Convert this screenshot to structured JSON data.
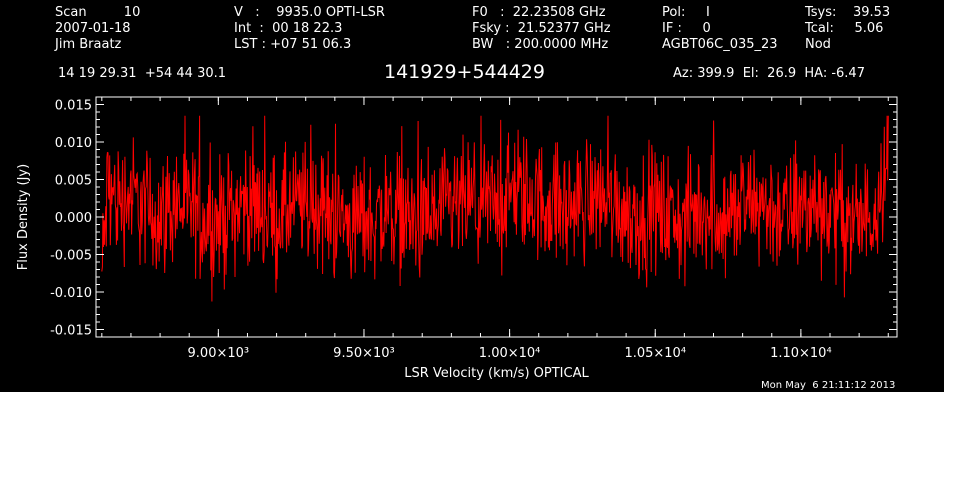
{
  "header": {
    "col1": [
      "Scan         10",
      "2007-01-18",
      "Jim Braatz"
    ],
    "col2": [
      "V   :    9935.0 OPTI-LSR",
      "Int  :  00 18 22.3",
      "LST : +07 51 06.3"
    ],
    "col3": [
      "F0   :  22.23508 GHz",
      "Fsky :  21.52377 GHz",
      "BW   : 200.0000 MHz"
    ],
    "col4": [
      "Pol:     I",
      "IF :     0",
      "AGBT06C_035_23"
    ],
    "col5": [
      "Tsys:    39.53",
      "Tcal:     5.06",
      "Nod"
    ],
    "coords": "14 19 29.31  +54 44 30.1",
    "source": "141929+544429",
    "azel": "Az: 399.9  El:  26.9  HA: -6.47",
    "timestamp": "Mon May  6 21:11:12 2013"
  },
  "colors": {
    "background": "#000000",
    "trace": "#ff0000",
    "axes": "#ffffff"
  },
  "chart_data": {
    "type": "line",
    "title": "",
    "xlabel": "LSR Velocity (km/s) OPTICAL",
    "ylabel": "Flux Density (Jy)",
    "xlim": [
      8580,
      11330
    ],
    "ylim": [
      -0.016,
      0.016
    ],
    "x_ticks": [
      9000,
      9500,
      10000,
      10500,
      11000
    ],
    "x_tick_labels": [
      "9.00×10³",
      "9.50×10³",
      "1.00×10⁴",
      "1.05×10⁴",
      "1.10×10⁴"
    ],
    "y_ticks": [
      -0.015,
      -0.01,
      -0.005,
      0.0,
      0.005,
      0.01,
      0.015
    ],
    "y_tick_labels": [
      "-0.015",
      "-0.010",
      "-0.005",
      "0.000",
      "0.005",
      "0.010",
      "0.015"
    ],
    "series": [
      {
        "color": "#ff0000",
        "description_stats": {
          "mean": 0.001,
          "noise_rms": 0.004,
          "peak_max": 0.0135,
          "peak_min": -0.0135
        },
        "x": [
          8600,
          8620,
          8650,
          8700,
          8750,
          8800,
          8850,
          8900,
          8950,
          9000,
          9050,
          9100,
          9150,
          9200,
          9250,
          9300,
          9350,
          9400,
          9450,
          9500,
          9550,
          9600,
          9650,
          9700,
          9750,
          9800,
          9850,
          9900,
          9950,
          10000,
          10050,
          10100,
          10150,
          10200,
          10250,
          10300,
          10350,
          10400,
          10450,
          10500,
          10550,
          10600,
          10650,
          10700,
          10750,
          10800,
          10850,
          10900,
          10950,
          11000,
          11050,
          11100,
          11150,
          11200,
          11250,
          11300
        ],
        "y": [
          -0.008,
          0.004,
          0.002,
          0.003,
          0.001,
          0.0,
          0.002,
          0.001,
          0.0,
          -0.001,
          0.001,
          0.002,
          0.001,
          0.0,
          0.001,
          0.002,
          0.001,
          0.0,
          -0.001,
          0.0,
          0.0,
          0.001,
          0.0,
          -0.001,
          0.0,
          0.001,
          0.002,
          0.001,
          0.002,
          0.003,
          0.003,
          0.002,
          0.002,
          0.001,
          0.002,
          0.003,
          0.002,
          0.001,
          0.0,
          0.001,
          0.0,
          -0.001,
          0.001,
          0.001,
          0.0,
          0.001,
          0.002,
          0.001,
          0.0,
          0.001,
          0.002,
          0.001,
          0.0,
          -0.001,
          0.001,
          0.009
        ]
      }
    ]
  }
}
